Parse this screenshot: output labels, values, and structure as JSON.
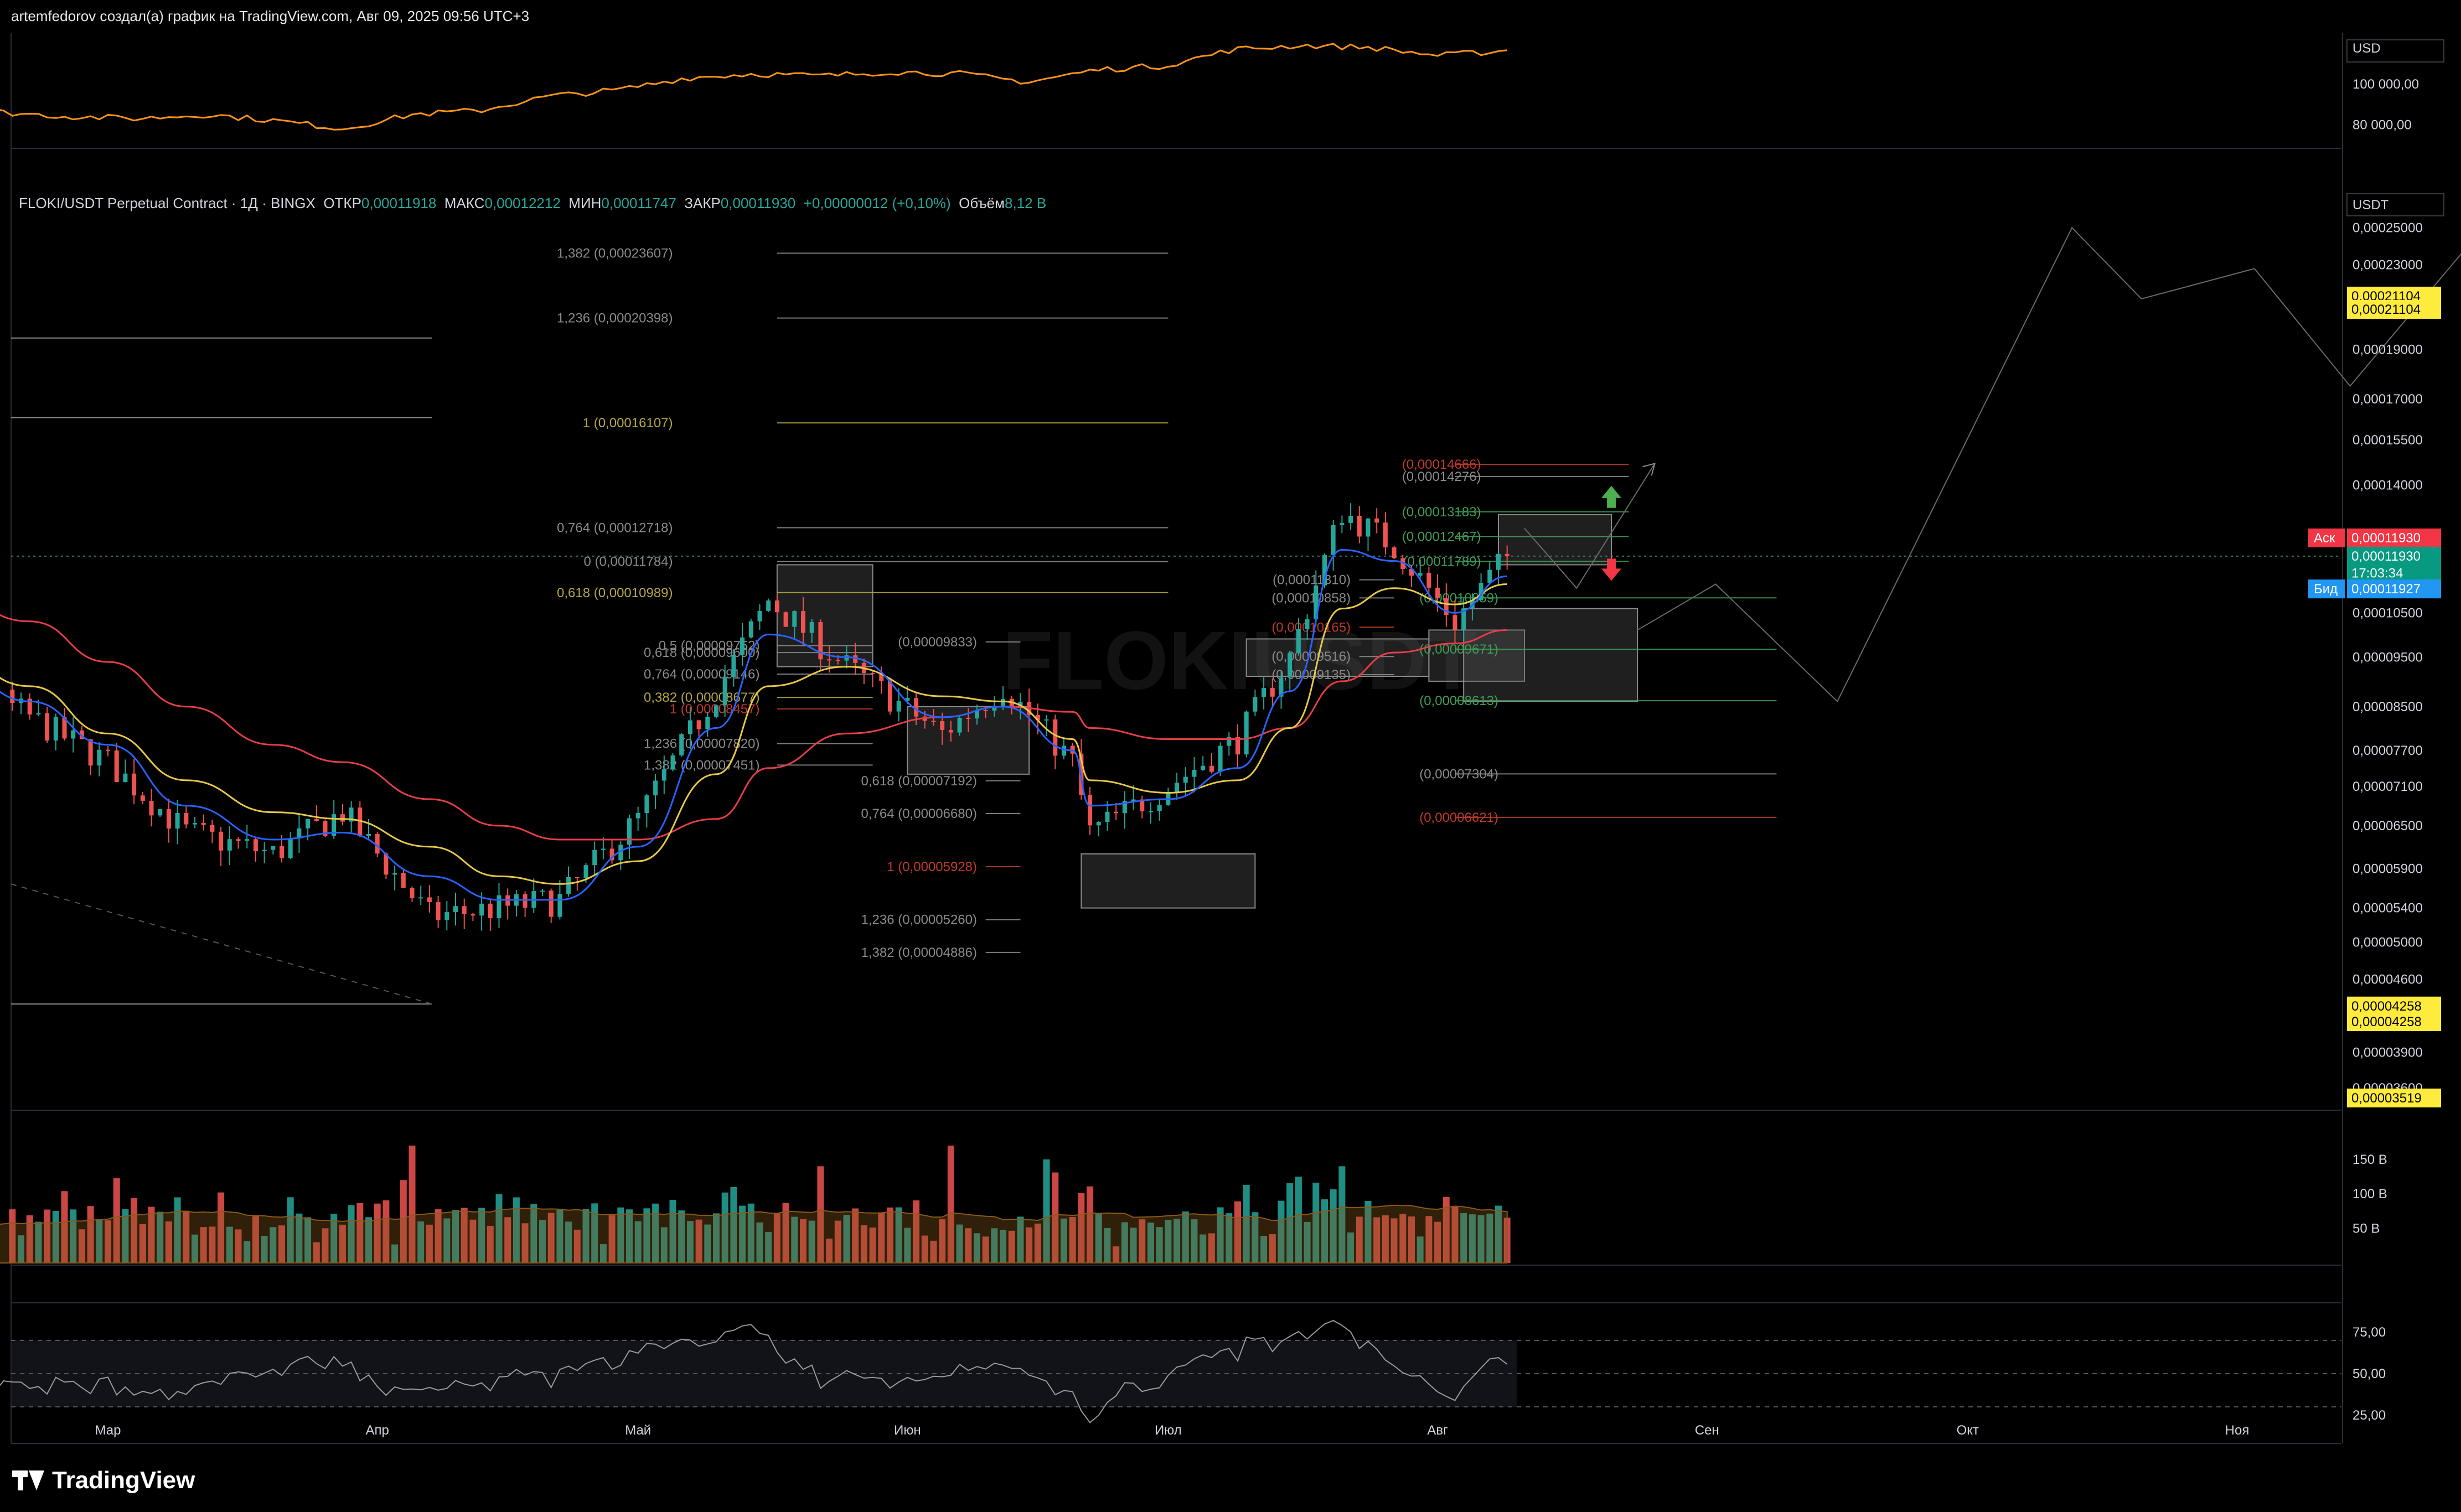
{
  "header": {
    "text": "artemfedorov создал(а) график на TradingView.com, Авг 09, 2025 09:56 UTC+3"
  },
  "legend": {
    "symbol": "FLOKI/USDT Perpetual Contract · 1Д · BINGX",
    "open_label": "ОТКР",
    "open": "0,00011918",
    "high_label": "МАКС",
    "high": "0,00012212",
    "low_label": "МИН",
    "low": "0,00011747",
    "close_label": "ЗАКР",
    "close": "0,00011930",
    "change": "+0,00000012 (+0,10%)",
    "volume_label": "Объём",
    "volume": "8,12 B"
  },
  "watermark": "FLOKIUSDT",
  "branding": "TradingView",
  "colors": {
    "background": "#000000",
    "bull": "#26a69a",
    "bear": "#ef5350",
    "ema_fast": "#2962ff",
    "ema_mid": "#e6c84a",
    "ema_slow": "#e53e47",
    "btc_line": "#f7931a",
    "rsi": "#9a9a9a",
    "fib_gray": "#8a8a8a",
    "fib_gold": "#b5a642",
    "fib_red": "#c0392b",
    "fib_green": "#3f9c55",
    "ask_badge": "#f23645",
    "bid_badge": "#2196f3",
    "last_badge": "#089981",
    "yellow_badge": "#ffeb3b"
  },
  "top_pane": {
    "currency": "USD",
    "ticks": [
      {
        "label": "100 000,00",
        "value": 100000
      },
      {
        "label": "80 000,00",
        "value": 80000
      }
    ]
  },
  "price_axis": {
    "currency": "USDT",
    "ticks": [
      "0,00025000",
      "0,00023000",
      "0,00019000",
      "0,00017000",
      "0,00015500",
      "0,00014000",
      "0,00010500",
      "0,00009500",
      "0,00008500",
      "0,00007700",
      "0,00007100",
      "0,00006500",
      "0,00005900",
      "0,00005400",
      "0,00005000",
      "0,00004600",
      "0,00003900",
      "0,00003600"
    ],
    "badges": {
      "yellow_top": [
        "0,00021104",
        "0,00021104"
      ],
      "ask_label": "Аск",
      "ask": "0,00011930",
      "last": "0,00011930",
      "countdown": "17:03:34",
      "bid_label": "Бид",
      "bid": "0,00011927",
      "yellow_low": [
        "0,00004258",
        "0,00004258"
      ],
      "yellow_bottom": "0,00003519"
    }
  },
  "volume_pane": {
    "ticks": [
      {
        "label": "150 B",
        "value": 150
      },
      {
        "label": "100 B",
        "value": 100
      },
      {
        "label": "50 B",
        "value": 50
      }
    ]
  },
  "rsi_pane": {
    "ticks": [
      {
        "label": "75,00",
        "value": 75
      },
      {
        "label": "50,00",
        "value": 50
      },
      {
        "label": "25,00",
        "value": 25
      }
    ]
  },
  "time_axis": {
    "labels": [
      "Мар",
      "Апр",
      "Май",
      "Июн",
      "Июл",
      "Авг",
      "Сен",
      "Окт",
      "Ноя"
    ]
  },
  "chart_data": {
    "type": "candlestick",
    "symbol": "FLOKI/USDT",
    "interval": "1D",
    "ylim": [
      3.45e-05,
      0.00026
    ],
    "close_path": [
      {
        "date": "2025-02-01",
        "close": 0.0001
      },
      {
        "date": "2025-02-10",
        "close": 9.3e-05
      },
      {
        "date": "2025-02-20",
        "close": 8.3e-05
      },
      {
        "date": "2025-03-01",
        "close": 7.5e-05
      },
      {
        "date": "2025-03-10",
        "close": 6.4e-05
      },
      {
        "date": "2025-03-20",
        "close": 6.1e-05
      },
      {
        "date": "2025-03-28",
        "close": 6.7e-05
      },
      {
        "date": "2025-04-07",
        "close": 5.3e-05
      },
      {
        "date": "2025-04-15",
        "close": 5.4e-05
      },
      {
        "date": "2025-04-22",
        "close": 5.5e-05
      },
      {
        "date": "2025-05-01",
        "close": 6.6e-05
      },
      {
        "date": "2025-05-10",
        "close": 8.8e-05
      },
      {
        "date": "2025-05-16",
        "close": 0.000108
      },
      {
        "date": "2025-05-25",
        "close": 9.3e-05
      },
      {
        "date": "2025-06-05",
        "close": 8e-05
      },
      {
        "date": "2025-06-12",
        "close": 8.9e-05
      },
      {
        "date": "2025-06-20",
        "close": 7.5e-05
      },
      {
        "date": "2025-06-22",
        "close": 6.4e-05
      },
      {
        "date": "2025-07-01",
        "close": 7.1e-05
      },
      {
        "date": "2025-07-09",
        "close": 7.9e-05
      },
      {
        "date": "2025-07-15",
        "close": 9.5e-05
      },
      {
        "date": "2025-07-21",
        "close": 0.000132
      },
      {
        "date": "2025-07-27",
        "close": 0.000122
      },
      {
        "date": "2025-08-03",
        "close": 0.000103
      },
      {
        "date": "2025-08-09",
        "close": 0.0001193
      }
    ],
    "ema_fast_path": [
      9.99e-05,
      9.5e-05,
      8.6e-05,
      7.8e-05,
      6.8e-05,
      6.3e-05,
      6.4e-05,
      5.8e-05,
      5.5e-05,
      5.5e-05,
      6.2e-05,
      8.1e-05,
      0.0001,
      9.5e-05,
      8.3e-05,
      8.5e-05,
      7.7e-05,
      6.8e-05,
      6.9e-05,
      7.4e-05,
      8.8e-05,
      0.000121,
      0.000118,
      0.000105,
      0.000114
    ],
    "ema_mid_path": [
      0.0001,
      9.7e-05,
      8.9e-05,
      8e-05,
      7.2e-05,
      6.7e-05,
      6.6e-05,
      6.2e-05,
      5.8e-05,
      5.7e-05,
      6e-05,
      7.3e-05,
      8.9e-05,
      9.3e-05,
      8.7e-05,
      8.6e-05,
      7.9e-05,
      7.2e-05,
      7e-05,
      7.2e-05,
      8.1e-05,
      0.000106,
      0.000111,
      0.000107,
      0.000112
    ],
    "ema_slow_path": [
      0.000116,
      0.00011,
      0.000103,
      9.4e-05,
      8.5e-05,
      7.8e-05,
      7.5e-05,
      6.9e-05,
      6.5e-05,
      6.3e-05,
      6.3e-05,
      6.6e-05,
      7.4e-05,
      8e-05,
      8.3e-05,
      8.5e-05,
      8.4e-05,
      8.1e-05,
      7.9e-05,
      7.9e-05,
      8.1e-05,
      9e-05,
      9.6e-05,
      9.8e-05,
      0.000101
    ],
    "btc_path": [
      96000,
      94000,
      86000,
      84000,
      83000,
      85000,
      82000,
      78000,
      85000,
      87000,
      94000,
      97000,
      103000,
      105000,
      104000,
      106000,
      105000,
      101000,
      107000,
      109000,
      117000,
      119000,
      118000,
      114000,
      116500
    ],
    "projection_path": [
      {
        "date": "2025-08-11",
        "value": 0.000127
      },
      {
        "date": "2025-08-17",
        "value": 0.000111
      },
      {
        "date": "2025-08-26",
        "value": 0.000147
      },
      {
        "date": "2025-08-24",
        "value": 0.000101
      },
      {
        "date": "2025-09-02",
        "value": 0.000112
      },
      {
        "date": "2025-09-16",
        "value": 8.6e-05
      },
      {
        "date": "2025-10-13",
        "value": 0.00025
      },
      {
        "date": "2025-10-21",
        "value": 0.000213
      },
      {
        "date": "2025-11-03",
        "value": 0.000228
      },
      {
        "date": "2025-11-14",
        "value": 0.000175
      },
      {
        "date": "2025-12-01",
        "value": 0.00026
      }
    ],
    "fib_groups": [
      {
        "label_date": "2025-05-05",
        "line_start": "2025-05-17",
        "line_end": "2025-07-01",
        "levels": [
          {
            "text": "1,382 (0,00023607)",
            "value": 0.00023607,
            "color": "gray"
          },
          {
            "text": "1,236 (0,00020398)",
            "value": 0.00020398,
            "color": "gray"
          },
          {
            "text": "1 (0,00016107)",
            "value": 0.00016107,
            "color": "gold"
          },
          {
            "text": "0,764 (0,00012718)",
            "value": 0.00012718,
            "color": "gray"
          },
          {
            "text": "0 (0,00011784)",
            "value": 0.00011784,
            "color": "gray"
          },
          {
            "text": "0,618 (0,00010989)",
            "value": 0.00010989,
            "color": "gold"
          }
        ]
      },
      {
        "label_date": "2025-05-15",
        "line_start": "2025-05-17",
        "line_end": "2025-05-28",
        "levels": [
          {
            "text": "0,5 (0,00009752)",
            "value": 9.752e-05,
            "color": "gray"
          },
          {
            "text": "0,618 (0,00009600)",
            "value": 9.6e-05,
            "color": "gray"
          },
          {
            "text": "0,764 (0,00009146)",
            "value": 9.146e-05,
            "color": "gray"
          },
          {
            "text": "0,382 (0,00008677)",
            "value": 8.677e-05,
            "color": "gold"
          },
          {
            "text": "1 (0,00008457)",
            "value": 8.457e-05,
            "color": "red"
          },
          {
            "text": "1,236 (0,00007820)",
            "value": 7.82e-05,
            "color": "gray"
          },
          {
            "text": "1,382 (0,00007451)",
            "value": 7.451e-05,
            "color": "gray"
          }
        ]
      },
      {
        "label_date": "2025-06-09",
        "line_start": "2025-06-10",
        "line_end": "2025-06-14",
        "levels": [
          {
            "text": "(0,00009833)",
            "value": 9.833e-05,
            "color": "gray"
          },
          {
            "text": "0,618 (0,00007192)",
            "value": 7.192e-05,
            "color": "gray"
          },
          {
            "text": "0,764 (0,00006680)",
            "value": 6.68e-05,
            "color": "gray"
          },
          {
            "text": "1 (0,00005928)",
            "value": 5.928e-05,
            "color": "red"
          },
          {
            "text": "1,236 (0,00005260)",
            "value": 5.26e-05,
            "color": "gray"
          },
          {
            "text": "1,382 (0,00004886)",
            "value": 4.886e-05,
            "color": "gray"
          }
        ]
      },
      {
        "label_date": "2025-07-22",
        "line_start": "2025-07-23",
        "line_end": "2025-07-27",
        "levels": [
          {
            "text": "(0,00011310)",
            "value": 0.0001131,
            "color": "gray"
          },
          {
            "text": "(0,00010858)",
            "value": 0.00010858,
            "color": "gray"
          },
          {
            "text": "(0,00010165)",
            "value": 0.00010165,
            "color": "red"
          },
          {
            "text": "(0,00009516)",
            "value": 9.516e-05,
            "color": "gray"
          },
          {
            "text": "(0,00009135)",
            "value": 9.135e-05,
            "color": "gray"
          }
        ]
      },
      {
        "label_date": "2025-08-06",
        "line_start": "2025-08-03",
        "line_end": "2025-08-23",
        "levels": [
          {
            "text": "(0,00014666)",
            "value": 0.00014666,
            "color": "red"
          },
          {
            "text": "(0,00014276)",
            "value": 0.00014276,
            "color": "gray"
          },
          {
            "text": "(0,00013183)",
            "value": 0.00013183,
            "color": "green"
          },
          {
            "text": "(0,00012467)",
            "value": 0.00012467,
            "color": "green"
          },
          {
            "text": "(0,00011789)",
            "value": 0.00011789,
            "color": "green"
          }
        ]
      },
      {
        "label_date": "2025-08-08",
        "line_start": "2025-08-03",
        "line_end": "2025-09-09",
        "levels": [
          {
            "text": "(0,00010859)",
            "value": 0.00010859,
            "color": "green"
          },
          {
            "text": "(0,00009671)",
            "value": 9.671e-05,
            "color": "green"
          },
          {
            "text": "(0,00008613)",
            "value": 8.613e-05,
            "color": "green"
          },
          {
            "text": "(0,00007304)",
            "value": 7.304e-05,
            "color": "gray"
          },
          {
            "text": "(0,00006621)",
            "value": 6.621e-05,
            "color": "red"
          }
        ]
      }
    ],
    "zones": [
      {
        "from": "2025-05-17",
        "to": "2025-05-28",
        "top": 0.000117,
        "bottom": 9.3e-05
      },
      {
        "from": "2025-06-01",
        "to": "2025-06-15",
        "top": 8.5e-05,
        "bottom": 7.3e-05
      },
      {
        "from": "2025-06-21",
        "to": "2025-07-11",
        "top": 6.1e-05,
        "bottom": 5.4e-05
      },
      {
        "from": "2025-07-10",
        "to": "2025-07-31",
        "top": 9.9e-05,
        "bottom": 9.1e-05
      },
      {
        "from": "2025-07-31",
        "to": "2025-08-11",
        "top": 0.000101,
        "bottom": 9e-05
      },
      {
        "from": "2025-08-04",
        "to": "2025-08-24",
        "top": 0.000106,
        "bottom": 8.6e-05
      },
      {
        "from": "2025-08-08",
        "to": "2025-08-21",
        "top": 0.000131,
        "bottom": 0.000117
      }
    ],
    "markers": [
      {
        "type": "up",
        "date": "2025-08-21",
        "value": 0.000136
      },
      {
        "type": "down",
        "date": "2025-08-21",
        "value": 0.000116
      }
    ],
    "rsi_ylim": [
      10,
      90
    ],
    "rsi_levels": [
      70,
      50,
      30
    ],
    "volume_ylim": [
      0,
      210
    ]
  }
}
